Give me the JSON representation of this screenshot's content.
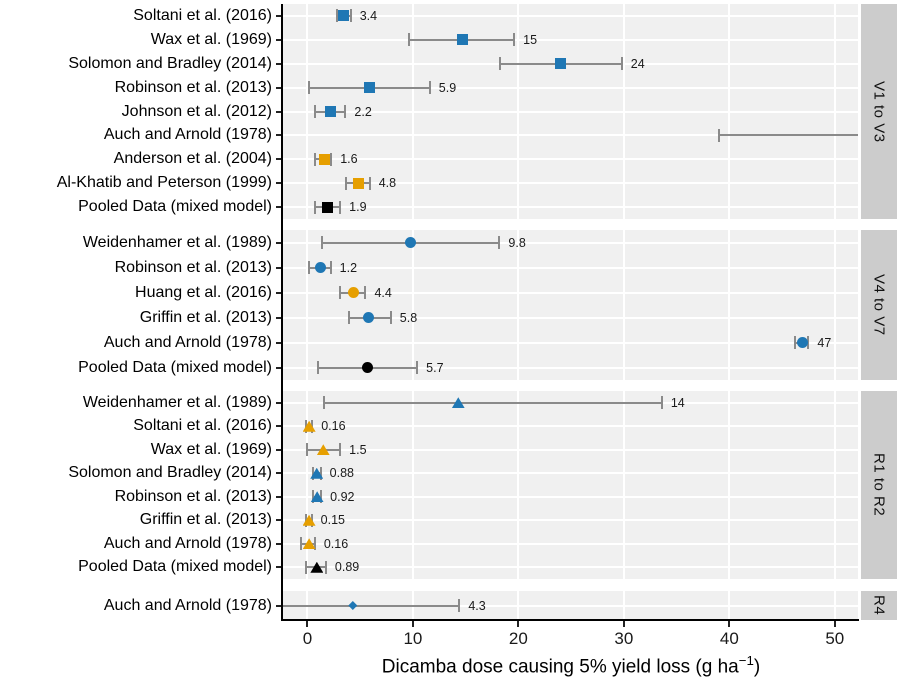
{
  "chart_data": {
    "type": "forest-dotplot",
    "title": "",
    "xlabel_parts": {
      "pre": "Dicamba dose causing 5% yield loss (g ha",
      "sup": "−1",
      "post": ")"
    },
    "x_ticks": [
      0,
      10,
      20,
      30,
      40,
      50
    ],
    "x_domain": [
      -2.32,
      52.2
    ],
    "grid": "major-only",
    "legend": "none",
    "colors": {
      "blue": "#1f77b4",
      "orange": "#e69f00",
      "black": "#000000",
      "errorbar": "#8a8a8a",
      "panel_bg": "#f0f0f0",
      "strip_bg": "#cccccc",
      "grid": "#ffffff",
      "axis": "#000000"
    },
    "panels": [
      {
        "strip": "V1 to V3",
        "marker": "square",
        "rows": [
          {
            "label": "Soltani et al. (2016)",
            "color": "blue",
            "est": 3.4,
            "lo": 2.8,
            "hi": 4.1,
            "value_label": "3.4"
          },
          {
            "label": "Wax et al. (1969)",
            "color": "blue",
            "est": 14.7,
            "lo": 9.6,
            "hi": 19.6,
            "value_label": "15"
          },
          {
            "label": "Solomon and Bradley (2014)",
            "color": "blue",
            "est": 24,
            "lo": 18.3,
            "hi": 29.8,
            "value_label": "24"
          },
          {
            "label": "Robinson et al. (2013)",
            "color": "blue",
            "est": 5.9,
            "lo": 0.1,
            "hi": 11.6,
            "value_label": "5.9"
          },
          {
            "label": "Johnson et al. (2012)",
            "color": "blue",
            "est": 2.2,
            "lo": 0.7,
            "hi": 3.6,
            "value_label": "2.2"
          },
          {
            "label": "Auch and Arnold (1978)",
            "color": "blue",
            "est": null,
            "lo": 39,
            "hi": null,
            "clip_hi": true,
            "value_label": null
          },
          {
            "label": "Anderson et al. (2004)",
            "color": "orange",
            "est": 1.6,
            "lo": 0.75,
            "hi": 2.25,
            "value_label": "1.6"
          },
          {
            "label": "Al-Khatib and Peterson (1999)",
            "color": "orange",
            "est": 4.8,
            "lo": 3.7,
            "hi": 5.9,
            "value_label": "4.8"
          },
          {
            "label": "Pooled Data (mixed model)",
            "color": "black",
            "est": 1.9,
            "lo": 0.7,
            "hi": 3.1,
            "value_label": "1.9"
          }
        ]
      },
      {
        "strip": "V4 to V7",
        "marker": "circle",
        "rows": [
          {
            "label": "Weidenhamer et al. (1989)",
            "color": "blue",
            "est": 9.8,
            "lo": 1.35,
            "hi": 18.2,
            "value_label": "9.8"
          },
          {
            "label": "Robinson et al. (2013)",
            "color": "blue",
            "est": 1.2,
            "lo": 0.1,
            "hi": 2.2,
            "value_label": "1.2"
          },
          {
            "label": "Huang et al. (2016)",
            "color": "orange",
            "est": 4.4,
            "lo": 3.1,
            "hi": 5.5,
            "value_label": "4.4"
          },
          {
            "label": "Griffin et al. (2013)",
            "color": "blue",
            "est": 5.8,
            "lo": 3.9,
            "hi": 7.9,
            "value_label": "5.8"
          },
          {
            "label": "Auch and Arnold (1978)",
            "color": "blue",
            "est": 46.9,
            "lo": 46.2,
            "hi": 47.5,
            "value_label": "47"
          },
          {
            "label": "Pooled Data (mixed model)",
            "color": "black",
            "est": 5.7,
            "lo": 1.0,
            "hi": 10.4,
            "value_label": "5.7"
          }
        ]
      },
      {
        "strip": "R1 to R2",
        "marker": "triangle",
        "rows": [
          {
            "label": "Weidenhamer et al. (1989)",
            "color": "blue",
            "est": 14.3,
            "lo": 1.6,
            "hi": 33.6,
            "value_label": "14"
          },
          {
            "label": "Soltani et al. (2016)",
            "color": "orange",
            "est": 0.16,
            "lo": -0.15,
            "hi": 0.45,
            "value_label": "0.16"
          },
          {
            "label": "Wax et al. (1969)",
            "color": "orange",
            "est": 1.5,
            "lo": 0.0,
            "hi": 3.1,
            "value_label": "1.5"
          },
          {
            "label": "Solomon and Bradley (2014)",
            "color": "blue",
            "est": 0.88,
            "lo": 0.55,
            "hi": 1.25,
            "value_label": "0.88"
          },
          {
            "label": "Robinson et al. (2013)",
            "color": "blue",
            "est": 0.92,
            "lo": 0.55,
            "hi": 1.3,
            "value_label": "0.92"
          },
          {
            "label": "Griffin et al. (2013)",
            "color": "orange",
            "est": 0.15,
            "lo": -0.1,
            "hi": 0.4,
            "value_label": "0.15"
          },
          {
            "label": "Auch and Arnold (1978)",
            "color": "orange",
            "est": 0.16,
            "lo": -0.6,
            "hi": 0.7,
            "value_label": "0.16"
          },
          {
            "label": "Pooled Data (mixed model)",
            "color": "black",
            "est": 0.89,
            "lo": -0.15,
            "hi": 1.75,
            "value_label": "0.89"
          }
        ]
      },
      {
        "strip": "R4",
        "marker": "diamond",
        "rows": [
          {
            "label": "Auch and Arnold (1978)",
            "color": "blue",
            "est": 4.3,
            "lo": null,
            "clip_lo": true,
            "hi": 14.4,
            "value_label": "4.3"
          }
        ]
      }
    ]
  }
}
